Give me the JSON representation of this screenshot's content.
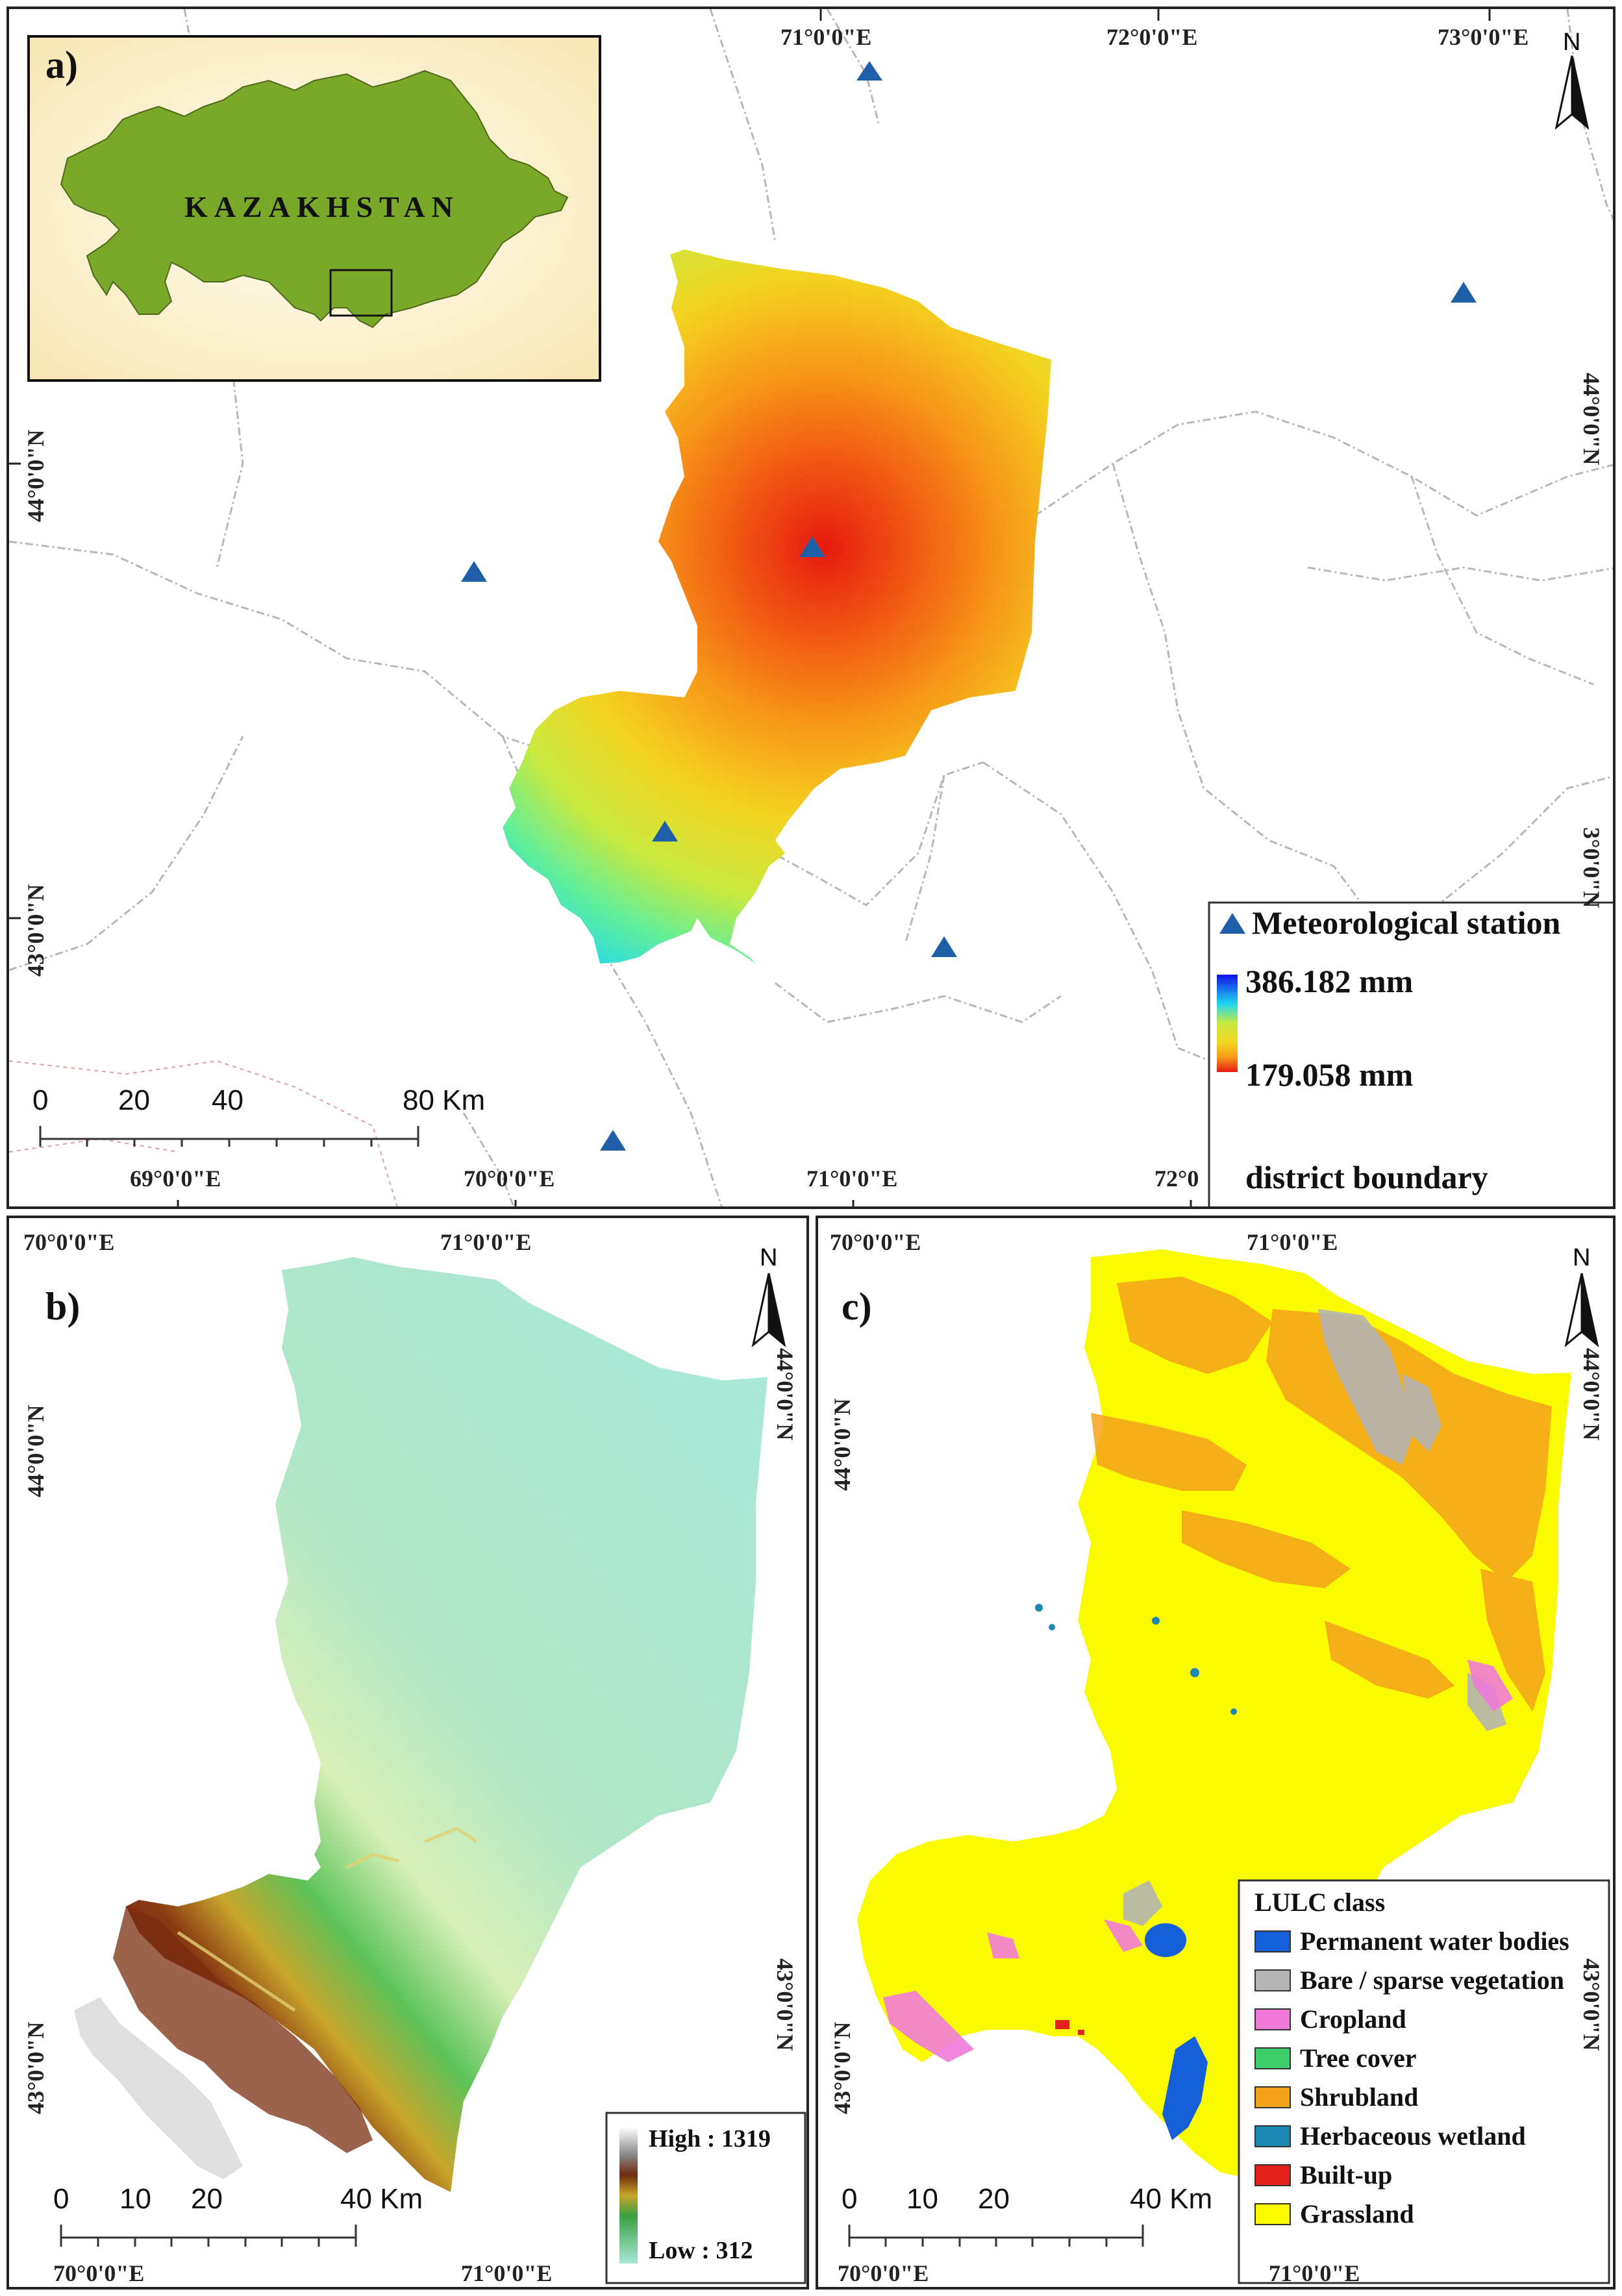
{
  "panel_a": {
    "label": "a)",
    "inset_country": "KAZAKHSTAN",
    "top_lon": [
      "71°0'0\"E",
      "72°0'0\"E",
      "73°0'0\"E"
    ],
    "bottom_lon": [
      "69°0'0\"E",
      "70°0'0\"E",
      "71°0'0\"E",
      "72°0"
    ],
    "left_lat": [
      "44°0'0\"N",
      "43°0'0\"N"
    ],
    "right_lat": [
      "44°0'0\"N",
      "3°0'0\"N"
    ],
    "north": "N",
    "scale": [
      "0",
      "20",
      "40",
      "80 Km"
    ],
    "legend": {
      "station": "Meteorological station",
      "high": "386.182 mm",
      "low": "179.058 mm",
      "boundary": "district boundary"
    },
    "colors": {
      "station": "#1f5fa8",
      "inset_land": "#7aa92a"
    }
  },
  "panel_b": {
    "label": "b)",
    "top_lon": [
      "70°0'0\"E",
      "71°0'0\"E"
    ],
    "bottom_lon": [
      "70°0'0\"E",
      "71°0'0\"E"
    ],
    "left_lat": [
      "44°0'0\"N",
      "43°0'0\"N"
    ],
    "right_lat": [
      "44°0'0\"N",
      "43°0'0\"N"
    ],
    "north": "N",
    "scale": [
      "0",
      "10",
      "20",
      "40 Km"
    ],
    "legend": {
      "high": "High : 1319",
      "low": "Low : 312"
    }
  },
  "panel_c": {
    "label": "c)",
    "top_lon": [
      "70°0'0\"E",
      "71°0'0\"E"
    ],
    "bottom_lon": [
      "70°0'0\"E",
      "71°0'0\"E"
    ],
    "left_lat": [
      "44°0'0\"N",
      "43°0'0\"N"
    ],
    "right_lat": [
      "44°0'0\"N",
      "43°0'0\"N"
    ],
    "north": "N",
    "scale": [
      "0",
      "10",
      "20",
      "40 Km"
    ],
    "legend": {
      "title": "LULC class",
      "classes": [
        {
          "name": "Permanent water bodies",
          "color": "#1560d8"
        },
        {
          "name": "Bare / sparse vegetation",
          "color": "#b4b4b4"
        },
        {
          "name": "Cropland",
          "color": "#f07ad8"
        },
        {
          "name": "Tree cover",
          "color": "#3fcf6a"
        },
        {
          "name": "Shrubland",
          "color": "#f5a21b"
        },
        {
          "name": "Herbaceous wetland",
          "color": "#1e88b4"
        },
        {
          "name": "Built-up",
          "color": "#e3211c"
        },
        {
          "name": "Grassland",
          "color": "#fafa00"
        }
      ]
    }
  }
}
